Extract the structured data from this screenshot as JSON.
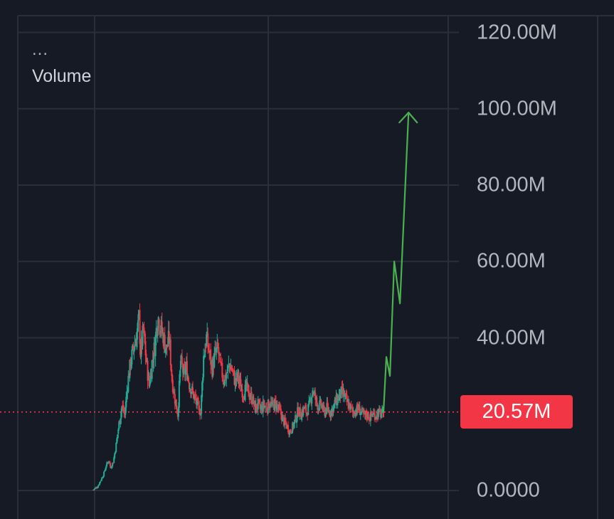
{
  "legend": {
    "more_label": "...",
    "title": "Volume"
  },
  "colors": {
    "background": "#161a25",
    "grid": "#2a2e39",
    "up": "#22ab94",
    "down": "#f23645",
    "projection": "#4caf50",
    "last_value_line": "#f23645",
    "axis_text": "#b2b5be"
  },
  "price_badge": {
    "label": "20.57M"
  },
  "chart_data": {
    "type": "line",
    "title": "Volume",
    "xlabel": "",
    "ylabel": "",
    "ylim": [
      0,
      125000000
    ],
    "y_ticks": [
      {
        "value": 0,
        "label": "0.0000"
      },
      {
        "value": 40000000,
        "label": "40.00M"
      },
      {
        "value": 60000000,
        "label": "60.00M"
      },
      {
        "value": 80000000,
        "label": "80.00M"
      },
      {
        "value": 100000000,
        "label": "100.00M"
      },
      {
        "value": 120000000,
        "label": "120.00M"
      }
    ],
    "grid": true,
    "last_value": 20570000,
    "last_value_label": "20.57M",
    "series": [
      {
        "style": "candlestick",
        "points": [
          [
            0,
            0.2
          ],
          [
            6,
            1.0
          ],
          [
            10,
            2.5
          ],
          [
            14,
            4.0
          ],
          [
            18,
            6.5
          ],
          [
            22,
            8.0
          ],
          [
            24,
            6.0
          ],
          [
            28,
            7.5
          ],
          [
            32,
            12.0
          ],
          [
            36,
            17.5
          ],
          [
            40,
            22.0
          ],
          [
            44,
            20.0
          ],
          [
            48,
            28.0
          ],
          [
            52,
            33.5
          ],
          [
            56,
            37.0
          ],
          [
            60,
            40.0
          ],
          [
            64,
            45.0
          ],
          [
            66,
            36.0
          ],
          [
            70,
            42.0
          ],
          [
            74,
            34.0
          ],
          [
            78,
            27.5
          ],
          [
            82,
            33.5
          ],
          [
            86,
            38.0
          ],
          [
            90,
            46.0
          ],
          [
            94,
            43.0
          ],
          [
            98,
            40.0
          ],
          [
            102,
            37.0
          ],
          [
            106,
            40.0
          ],
          [
            110,
            29.0
          ],
          [
            114,
            24.0
          ],
          [
            118,
            20.0
          ],
          [
            122,
            34.0
          ],
          [
            126,
            30.5
          ],
          [
            130,
            32.0
          ],
          [
            134,
            28.0
          ],
          [
            138,
            26.0
          ],
          [
            142,
            24.0
          ],
          [
            146,
            22.0
          ],
          [
            150,
            20.5
          ],
          [
            154,
            35.0
          ],
          [
            158,
            40.0
          ],
          [
            162,
            36.0
          ],
          [
            166,
            32.0
          ],
          [
            170,
            35.5
          ],
          [
            174,
            37.0
          ],
          [
            178,
            32.0
          ],
          [
            182,
            29.0
          ],
          [
            186,
            30.5
          ],
          [
            190,
            33.0
          ],
          [
            194,
            31.5
          ],
          [
            198,
            28.5
          ],
          [
            202,
            30.0
          ],
          [
            206,
            27.0
          ],
          [
            210,
            25.5
          ],
          [
            214,
            27.0
          ],
          [
            218,
            25.0
          ],
          [
            222,
            24.0
          ],
          [
            226,
            21.5
          ],
          [
            230,
            22.5
          ],
          [
            234,
            21.0
          ],
          [
            238,
            22.5
          ],
          [
            242,
            21.5
          ],
          [
            246,
            23.0
          ],
          [
            250,
            22.0
          ],
          [
            254,
            23.0
          ],
          [
            258,
            21.5
          ],
          [
            262,
            20.0
          ],
          [
            266,
            18.0
          ],
          [
            270,
            17.0
          ],
          [
            274,
            15.5
          ],
          [
            278,
            16.5
          ],
          [
            282,
            18.5
          ],
          [
            286,
            21.0
          ],
          [
            290,
            20.0
          ],
          [
            294,
            21.5
          ],
          [
            298,
            20.5
          ],
          [
            302,
            22.5
          ],
          [
            306,
            26.5
          ],
          [
            310,
            24.0
          ],
          [
            314,
            22.0
          ],
          [
            318,
            22.5
          ],
          [
            322,
            20.5
          ],
          [
            326,
            21.5
          ],
          [
            330,
            20.5
          ],
          [
            334,
            21.5
          ],
          [
            338,
            23.0
          ],
          [
            342,
            24.5
          ],
          [
            346,
            25.5
          ],
          [
            350,
            25.0
          ],
          [
            354,
            23.0
          ],
          [
            358,
            22.0
          ],
          [
            362,
            20.5
          ],
          [
            366,
            21.0
          ],
          [
            370,
            21.5
          ],
          [
            374,
            20.5
          ],
          [
            378,
            19.5
          ],
          [
            382,
            20.0
          ],
          [
            386,
            19.2
          ],
          [
            390,
            20.0
          ],
          [
            394,
            19.8
          ],
          [
            398,
            20.3
          ],
          [
            402,
            20.0
          ],
          [
            405,
            20.57
          ]
        ]
      },
      {
        "style": "projection",
        "points": [
          [
            405,
            20.57
          ],
          [
            409,
            35.0
          ],
          [
            414,
            30.0
          ],
          [
            420,
            60.0
          ],
          [
            428,
            49.0
          ],
          [
            440,
            99.0
          ]
        ]
      }
    ]
  }
}
